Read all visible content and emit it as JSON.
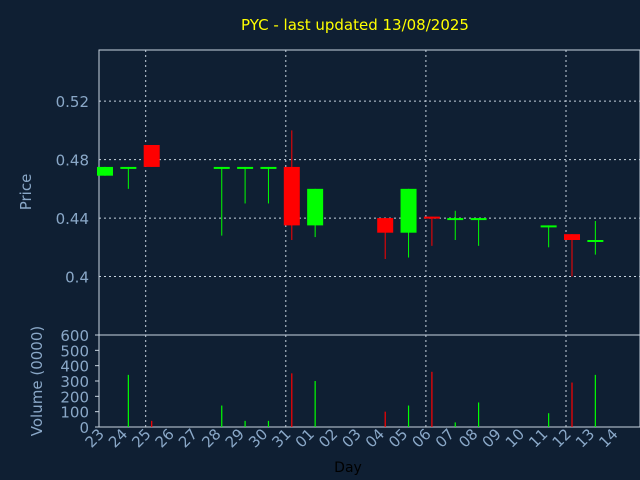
{
  "chart_data": {
    "type": "candlestick",
    "title": "PYC - last updated 13/08/2025",
    "xlabel": "Day",
    "ylabel_price": "Price",
    "ylabel_volume": "Volume (0000)",
    "x_ticks": [
      "23",
      "24",
      "25",
      "26",
      "27",
      "28",
      "29",
      "30",
      "31",
      "01",
      "02",
      "03",
      "04",
      "05",
      "06",
      "07",
      "08",
      "09",
      "10",
      "11",
      "12",
      "13",
      "14"
    ],
    "price_ticks": [
      "0.4",
      "0.44",
      "0.48",
      "0.52"
    ],
    "price_ylim": [
      0.36,
      0.555
    ],
    "volume_ticks": [
      "0",
      "100",
      "200",
      "300",
      "400",
      "500",
      "600"
    ],
    "volume_ylim": [
      0,
      600
    ],
    "colors": {
      "up": "#00ff00",
      "down": "#ff0000",
      "background": "#0f1f33",
      "title": "#ffff00",
      "axis_text": "#8aa8c8"
    },
    "candles": [
      {
        "day": "23",
        "open": 0.469,
        "high": 0.475,
        "low": 0.469,
        "close": 0.475,
        "volume": 0
      },
      {
        "day": "24",
        "open": 0.475,
        "high": 0.475,
        "low": 0.46,
        "close": 0.475,
        "volume": 340
      },
      {
        "day": "25",
        "open": 0.49,
        "high": 0.49,
        "low": 0.475,
        "close": 0.475,
        "volume": 40
      },
      {
        "day": "28",
        "open": 0.475,
        "high": 0.475,
        "low": 0.428,
        "close": 0.475,
        "volume": 140
      },
      {
        "day": "29",
        "open": 0.475,
        "high": 0.475,
        "low": 0.45,
        "close": 0.475,
        "volume": 40
      },
      {
        "day": "30",
        "open": 0.475,
        "high": 0.475,
        "low": 0.45,
        "close": 0.475,
        "volume": 40
      },
      {
        "day": "31",
        "open": 0.475,
        "high": 0.5,
        "low": 0.425,
        "close": 0.435,
        "volume": 350
      },
      {
        "day": "01",
        "open": 0.435,
        "high": 0.46,
        "low": 0.427,
        "close": 0.46,
        "volume": 300
      },
      {
        "day": "04",
        "open": 0.44,
        "high": 0.44,
        "low": 0.412,
        "close": 0.43,
        "volume": 100
      },
      {
        "day": "05",
        "open": 0.43,
        "high": 0.46,
        "low": 0.413,
        "close": 0.46,
        "volume": 140
      },
      {
        "day": "06",
        "open": 0.441,
        "high": 0.441,
        "low": 0.421,
        "close": 0.44,
        "volume": 360
      },
      {
        "day": "07",
        "open": 0.44,
        "high": 0.445,
        "low": 0.425,
        "close": 0.44,
        "volume": 30
      },
      {
        "day": "08",
        "open": 0.44,
        "high": 0.44,
        "low": 0.421,
        "close": 0.44,
        "volume": 160
      },
      {
        "day": "11",
        "open": 0.435,
        "high": 0.435,
        "low": 0.42,
        "close": 0.435,
        "volume": 90
      },
      {
        "day": "12",
        "open": 0.429,
        "high": 0.429,
        "low": 0.4,
        "close": 0.425,
        "volume": 290
      },
      {
        "day": "13",
        "open": 0.425,
        "high": 0.438,
        "low": 0.415,
        "close": 0.425,
        "volume": 340
      }
    ]
  }
}
